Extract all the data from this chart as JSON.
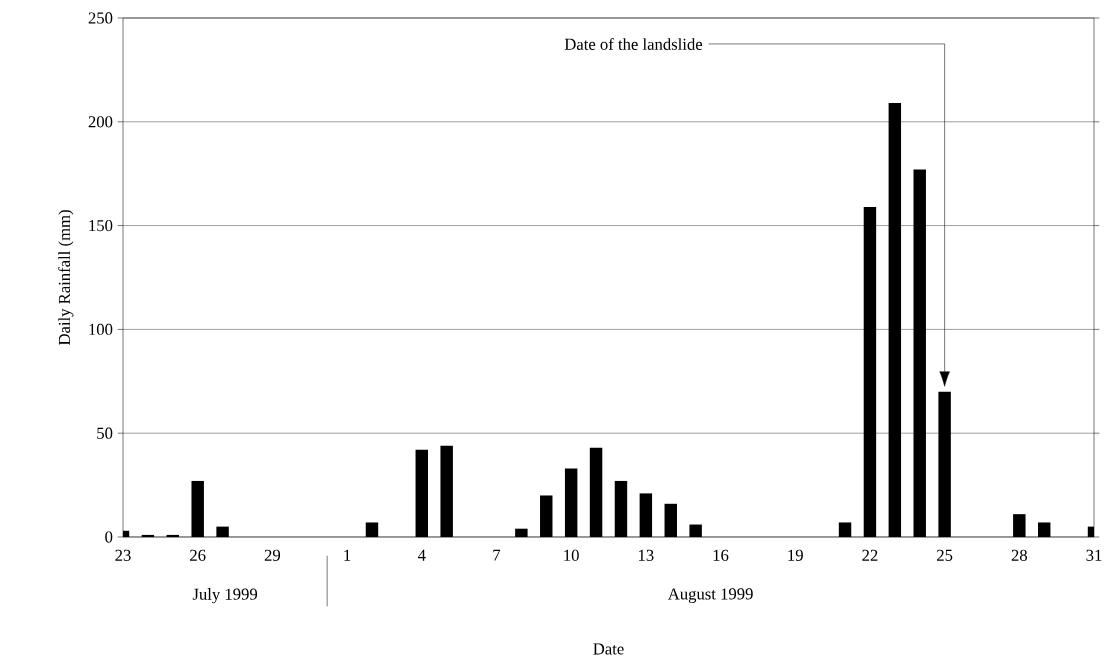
{
  "chart_data": {
    "type": "bar",
    "xlabel": "Date",
    "ylabel": "Daily Rainfall (mm)",
    "categories": [
      "23",
      null,
      null,
      "26",
      null,
      null,
      "29",
      null,
      null,
      "1",
      null,
      null,
      "4",
      null,
      null,
      "7",
      null,
      null,
      "10",
      null,
      null,
      "13",
      null,
      null,
      "16",
      null,
      null,
      "19",
      null,
      null,
      "22",
      null,
      null,
      "25",
      null,
      null,
      "28",
      null,
      null,
      "31"
    ],
    "values": [
      3,
      1,
      1,
      27,
      5,
      0,
      0,
      0,
      0,
      0,
      7,
      0,
      42,
      44,
      0,
      0,
      4,
      20,
      33,
      43,
      27,
      21,
      16,
      6,
      0,
      0,
      0,
      0,
      0,
      7,
      159,
      209,
      177,
      70,
      0,
      0,
      11,
      7,
      0,
      5
    ],
    "color": "#000000",
    "ylim": [
      0,
      250
    ],
    "yticks": [
      0,
      50,
      100,
      150,
      200,
      250
    ],
    "grid": "y",
    "annotations": [
      "Date of the landslide",
      "July 1999",
      "August 1999"
    ]
  }
}
